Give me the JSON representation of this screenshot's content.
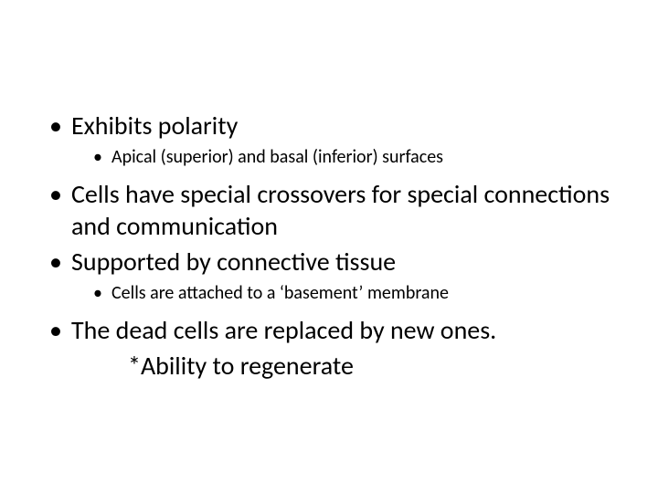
{
  "slide": {
    "background_color": "#ffffff",
    "text_color": "#000000",
    "font_family": "Calibri",
    "bullets": [
      {
        "level": 1,
        "text": "Exhibits polarity"
      },
      {
        "level": 2,
        "text": "Apical (superior) and basal (inferior) surfaces"
      },
      {
        "level": 1,
        "text": "Cells have special crossovers for special connections and communication"
      },
      {
        "level": 1,
        "text": "Supported by connective tissue"
      },
      {
        "level": 2,
        "text": "Cells are attached to a ‘basement’ membrane"
      },
      {
        "level": 1,
        "text": "The dead cells are replaced by new ones."
      },
      {
        "level": "indent",
        "text": "*Ability to regenerate"
      }
    ],
    "typography": {
      "level1_fontsize_pt": 28,
      "level2_fontsize_pt": 20,
      "font_weight": "normal"
    }
  }
}
